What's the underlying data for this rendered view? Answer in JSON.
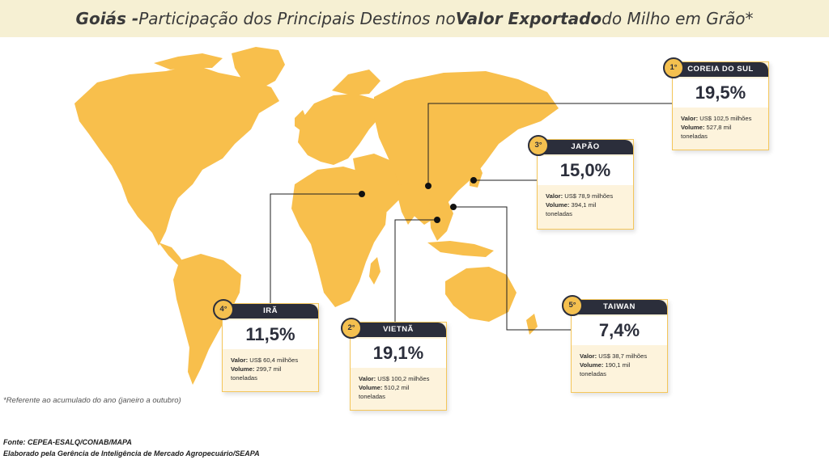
{
  "title": {
    "part1": "Goiás - ",
    "part2": "Participação dos Principais Destinos no ",
    "part3": "Valor Exportado",
    "part4": " do Milho em Grão*"
  },
  "colors": {
    "land": "#f8bf4c",
    "card_head": "#2b2e3b",
    "card_body": "#fdf3dc",
    "title_bg": "#f6f0d3",
    "connector": "#1f1f1f"
  },
  "destinations": [
    {
      "rank": "1°",
      "country": "COREIA DO SUL",
      "share": "19,5%",
      "value_label": "Valor:",
      "value": "US$ 102,5 milhões",
      "volume_label": "Volume:",
      "volume": "527,8 mil",
      "volume_unit": "toneladas"
    },
    {
      "rank": "2°",
      "country": "VIETNÃ",
      "share": "19,1%",
      "value_label": "Valor:",
      "value": "US$ 100,2 milhões",
      "volume_label": "Volume:",
      "volume": "510,2 mil",
      "volume_unit": "toneladas"
    },
    {
      "rank": "3°",
      "country": "JAPÃO",
      "share": "15,0%",
      "value_label": "Valor:",
      "value": "US$ 78,9 milhões",
      "volume_label": "Volume:",
      "volume": "394,1 mil",
      "volume_unit": "toneladas"
    },
    {
      "rank": "4°",
      "country": "IRÃ",
      "share": "11,5%",
      "value_label": "Valor:",
      "value": "US$ 60,4 milhões",
      "volume_label": "Volume:",
      "volume": "299,7 mil",
      "volume_unit": "toneladas"
    },
    {
      "rank": "5°",
      "country": "TAIWAN",
      "share": "7,4%",
      "value_label": "Valor:",
      "value": "US$ 38,7 milhões",
      "volume_label": "Volume:",
      "volume": "190,1 mil",
      "volume_unit": "toneladas"
    }
  ],
  "footnote": "*Referente ao acumulado do ano (janeiro a outubro)",
  "source": {
    "line1": "Fonte: CEPEA-ESALQ/CONAB/MAPA",
    "line2": "Elaborado pela Gerência de Inteligência de Mercado Agropecuário/SEAPA"
  }
}
